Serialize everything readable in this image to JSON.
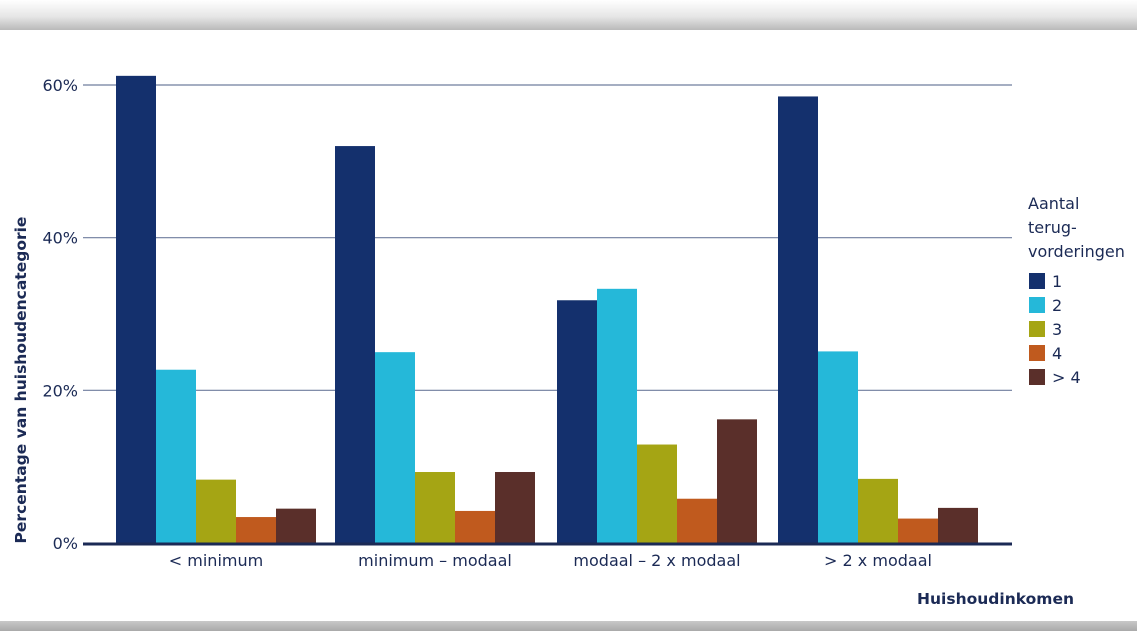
{
  "chart_data": {
    "type": "bar",
    "xlabel": "Huishoudinkomen",
    "ylabel": "Percentage van huishoudencategorie",
    "ylim": [
      0,
      60
    ],
    "yticks": [
      0,
      20,
      40,
      60
    ],
    "ytick_labels": [
      "0%",
      "20%",
      "40%",
      "60%"
    ],
    "grid": true,
    "legend_placement": "right",
    "legend_title": [
      "Aantal",
      "terug-",
      "vorderingen"
    ],
    "categories": [
      "< minimum",
      "minimum – modaal",
      "modaal – 2 x modaal",
      "> 2 x modaal"
    ],
    "series": [
      {
        "name": "1",
        "color": "#14306d",
        "values": [
          61.2,
          52.0,
          31.8,
          58.5
        ]
      },
      {
        "name": "2",
        "color": "#25b8d9",
        "values": [
          22.7,
          25.0,
          33.3,
          25.1
        ]
      },
      {
        "name": "3",
        "color": "#a5a514",
        "values": [
          8.3,
          9.3,
          12.9,
          8.4
        ]
      },
      {
        "name": "4",
        "color": "#c05a1e",
        "values": [
          3.4,
          4.2,
          5.8,
          3.2
        ]
      },
      {
        "name": "> 4",
        "color": "#5a2f2a",
        "values": [
          4.5,
          9.3,
          16.2,
          4.6
        ]
      }
    ],
    "axis_color": "#1b2a55",
    "grid_color": "#6f7d9e"
  }
}
